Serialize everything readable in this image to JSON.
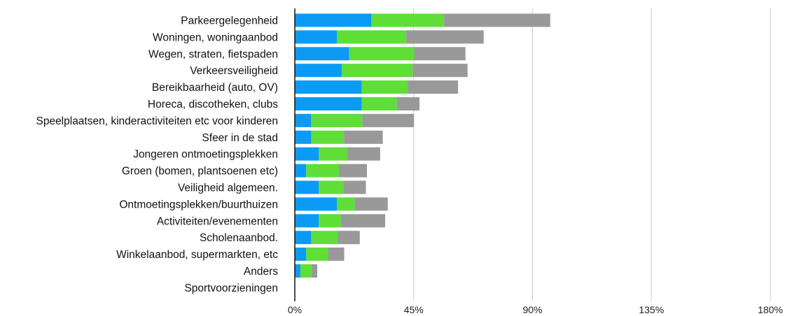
{
  "chart_data": {
    "type": "bar",
    "orientation": "horizontal",
    "stacked": true,
    "categories": [
      "Parkeergelegenheid",
      "Woningen, woningaanbod",
      "Wegen, straten, fietspaden",
      "Verkeersveiligheid",
      "Bereikbaarheid (auto, OV)",
      "Horeca, discotheken, clubs",
      "Speelplaatsen, kinderactiviteiten etc voor kinderen",
      "Sfeer in de stad",
      "Jongeren ontmoetingsplekken",
      "Groen (bomen, plantsoenen etc)",
      "Veiligheid algemeen.",
      "Ontmoetingsplekken/buurthuizen",
      "Activiteiten/evenementen",
      "Scholenaanbod.",
      "Winkelaanbod, supermarkten, etc",
      "Anders",
      "Sportvoorzieningen"
    ],
    "series": [
      {
        "color": "#0b9bf5",
        "values": [
          29.0,
          15.9,
          20.6,
          17.8,
          25.3,
          25.3,
          6.2,
          6.2,
          9.1,
          4.3,
          9.1,
          15.9,
          9.1,
          6.2,
          4.3,
          2.1,
          0
        ]
      },
      {
        "color": "#5ede37",
        "values": [
          27.5,
          26.2,
          24.6,
          26.8,
          17.4,
          13.3,
          19.4,
          12.4,
          10.8,
          12.4,
          9.3,
          6.8,
          8.3,
          10.1,
          8.3,
          4.2,
          0
        ]
      },
      {
        "color": "#999999",
        "values": [
          40.2,
          29.4,
          19.4,
          20.8,
          19.1,
          8.6,
          19.5,
          14.7,
          12.4,
          10.6,
          8.5,
          12.5,
          16.8,
          8.3,
          6.1,
          2.2,
          0
        ]
      }
    ],
    "xlim": [
      0,
      180
    ],
    "xticks": [
      "0%",
      "45%",
      "90%",
      "135%",
      "180%"
    ],
    "gridlines": true
  }
}
